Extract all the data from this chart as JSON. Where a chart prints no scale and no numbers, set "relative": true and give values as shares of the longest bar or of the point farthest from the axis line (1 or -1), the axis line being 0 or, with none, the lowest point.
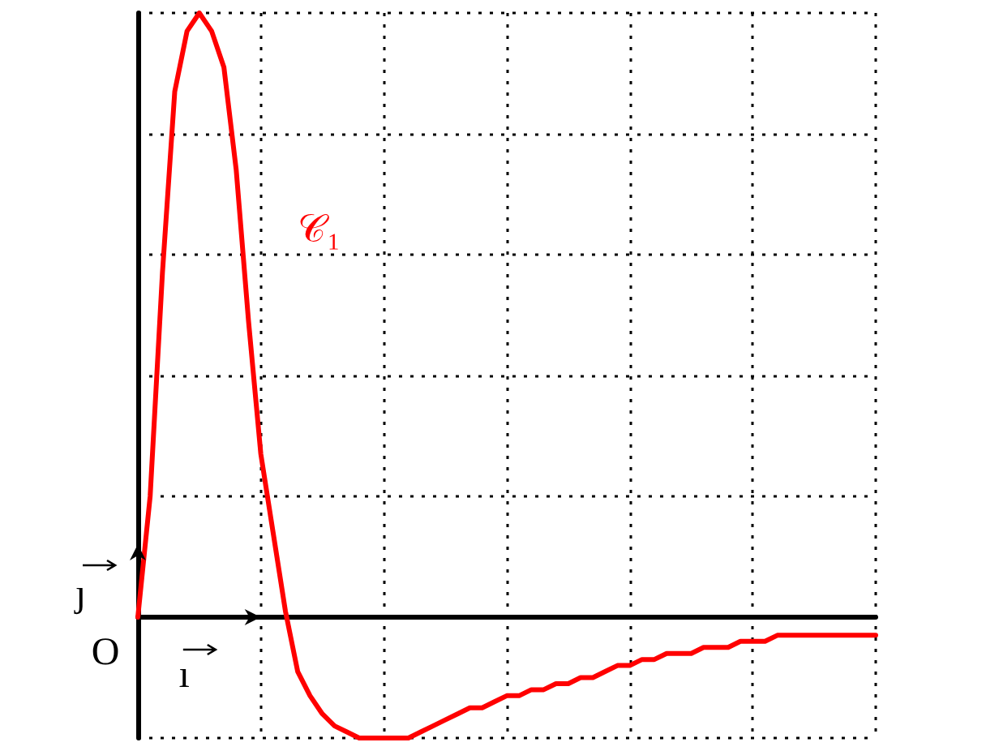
{
  "chart_data": {
    "type": "line",
    "relative": true,
    "grid": true,
    "marker": "none",
    "categories": [
      null,
      null,
      null,
      null,
      null,
      null,
      null,
      null,
      null,
      null,
      null,
      null,
      null,
      null,
      null,
      null,
      null,
      null,
      null,
      null,
      null,
      null,
      null,
      null,
      null,
      null,
      null,
      null,
      null,
      null,
      null,
      null,
      null,
      null,
      null,
      null,
      null,
      null,
      null,
      null,
      null,
      null,
      null,
      null,
      null,
      null,
      null,
      null,
      null,
      null,
      null,
      null,
      null,
      null,
      null,
      null,
      null,
      null,
      null,
      null,
      null
    ],
    "series": [
      {
        "color": "#ff0000",
        "values": [
          0,
          0.2,
          0.57,
          0.87,
          0.97,
          1,
          0.97,
          0.91,
          0.74,
          0.49,
          0.27,
          0.14,
          0.01,
          -0.09,
          -0.13,
          -0.16,
          -0.18,
          -0.19,
          -0.2,
          -0.2,
          -0.2,
          -0.2,
          -0.2,
          -0.19,
          -0.18,
          -0.17,
          -0.16,
          -0.15,
          -0.15,
          -0.14,
          -0.13,
          -0.13,
          -0.12,
          -0.12,
          -0.11,
          -0.11,
          -0.1,
          -0.1,
          -0.09,
          -0.08,
          -0.08,
          -0.07,
          -0.07,
          -0.06,
          -0.06,
          -0.06,
          -0.05,
          -0.05,
          -0.05,
          -0.04,
          -0.04,
          -0.04,
          -0.03,
          -0.03,
          -0.03,
          -0.03,
          -0.03,
          -0.03,
          -0.03,
          -0.03,
          -0.03
        ]
      }
    ],
    "annotations": [
      "𝒞₁",
      "O",
      "ı⃗",
      "ȷ⃗"
    ]
  }
}
